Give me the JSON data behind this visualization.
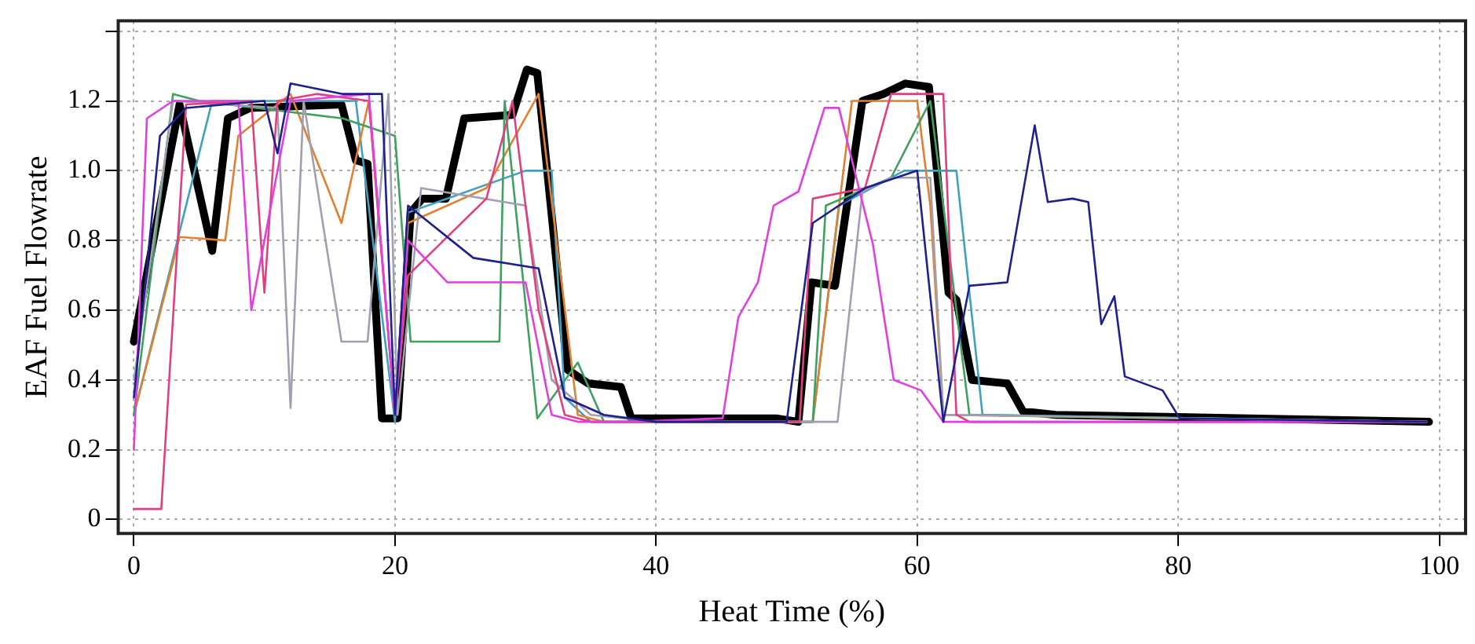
{
  "chart_data": {
    "type": "line",
    "xlabel": "Heat Time (%)",
    "ylabel": "EAF Fuel Flowrate",
    "xlim": [
      -1.2,
      102
    ],
    "ylim": [
      -0.04,
      1.43
    ],
    "xticks": [
      0,
      20,
      40,
      60,
      80,
      100
    ],
    "yticks": [
      0,
      0.2,
      0.4,
      0.6,
      0.8,
      {
        "value": 1,
        "label": "1.0"
      },
      1.2,
      {
        "value": 1.4,
        "label": null
      }
    ],
    "grid": true,
    "legend": false,
    "marker": "none",
    "line_style": "solid",
    "series": [
      {
        "color": "#1f1f8f",
        "x": [
          0,
          2,
          4,
          10,
          11,
          12,
          16,
          19,
          20,
          21,
          26,
          31,
          33,
          36,
          40,
          50,
          52,
          56,
          60,
          62,
          64,
          66.9,
          69,
          70,
          71.9,
          73.1,
          74.1,
          75.1,
          75.9,
          78.8,
          80.1,
          99
        ],
        "values": [
          0.35,
          1.1,
          1.18,
          1.2,
          1.05,
          1.25,
          1.22,
          1.22,
          0.3,
          0.9,
          0.75,
          0.72,
          0.35,
          0.3,
          0.28,
          0.28,
          0.85,
          0.95,
          1.0,
          0.28,
          0.67,
          0.68,
          1.13,
          0.91,
          0.92,
          0.91,
          0.56,
          0.64,
          0.41,
          0.37,
          0.29,
          0.28
        ]
      },
      {
        "color": "#e040e0",
        "x": [
          0,
          1,
          3,
          8,
          9,
          12,
          18,
          20,
          21,
          24,
          30,
          32,
          34,
          38,
          45.1,
          46.3,
          47.8,
          49,
          50.9,
          52.9,
          54,
          56.6,
          58.2,
          60.3,
          62,
          99
        ],
        "values": [
          0.2,
          1.15,
          1.2,
          1.2,
          0.6,
          1.2,
          1.22,
          0.3,
          0.8,
          0.68,
          0.68,
          0.3,
          0.28,
          0.28,
          0.29,
          0.58,
          0.68,
          0.9,
          0.94,
          1.18,
          1.18,
          0.79,
          0.4,
          0.37,
          0.28,
          0.28
        ]
      },
      {
        "color": "#e0407f",
        "x": [
          0,
          2.1,
          4,
          9,
          10,
          11,
          14,
          18,
          20,
          21,
          27,
          29,
          31,
          33,
          35,
          51,
          52,
          56,
          58,
          62,
          63,
          64,
          99
        ],
        "values": [
          0.03,
          0.03,
          1.19,
          1.2,
          0.65,
          1.2,
          1.22,
          1.2,
          0.3,
          0.7,
          0.92,
          1.2,
          0.6,
          0.3,
          0.28,
          0.28,
          0.92,
          0.95,
          1.22,
          1.22,
          0.3,
          0.28,
          0.28
        ]
      },
      {
        "color": "#a0a0b0",
        "x": [
          0,
          3,
          11,
          12,
          13,
          15.9,
          17.9,
          19.5,
          20.2,
          22,
          30,
          32,
          35,
          40,
          53.9,
          55.8,
          58,
          61,
          62,
          99
        ],
        "values": [
          0.4,
          1.2,
          1.18,
          0.32,
          1.2,
          0.51,
          0.51,
          1.22,
          0.3,
          0.95,
          0.9,
          0.4,
          0.3,
          0.28,
          0.28,
          0.94,
          0.98,
          0.98,
          0.3,
          0.28
        ]
      },
      {
        "color": "#3fa060",
        "x": [
          0,
          3,
          5,
          16,
          20,
          21.2,
          28,
          28.4,
          30.9,
          34,
          36,
          52,
          53,
          58,
          61,
          64,
          99
        ],
        "values": [
          0.3,
          1.22,
          1.2,
          1.15,
          1.1,
          0.51,
          0.51,
          1.2,
          0.29,
          0.45,
          0.28,
          0.28,
          0.9,
          0.98,
          1.2,
          0.3,
          0.28
        ]
      },
      {
        "color": "#e08030",
        "x": [
          0,
          3.5,
          7,
          8,
          12,
          15.9,
          18,
          20,
          21,
          27,
          31,
          34,
          36,
          52,
          55,
          60,
          61,
          62,
          99
        ],
        "values": [
          0.3,
          0.81,
          0.8,
          1.1,
          1.22,
          0.85,
          1.2,
          0.3,
          0.85,
          0.95,
          1.22,
          0.3,
          0.28,
          0.28,
          1.2,
          1.2,
          0.9,
          0.3,
          0.28
        ]
      },
      {
        "color": "#40a0c0",
        "x": [
          0,
          2,
          6,
          17,
          20,
          21,
          30,
          32,
          33,
          35,
          52,
          54,
          59,
          63,
          65,
          99
        ],
        "values": [
          0.3,
          0.6,
          1.2,
          1.2,
          0.28,
          0.88,
          1.0,
          1.0,
          0.35,
          0.28,
          0.28,
          0.9,
          1.0,
          1.0,
          0.3,
          0.28
        ]
      },
      {
        "color": "#000000",
        "x": [
          0,
          3.5,
          6,
          7.2,
          8.9,
          15.9,
          17,
          17.9,
          19,
          20.2,
          21.2,
          22.1,
          23.9,
          25.3,
          29,
          30.1,
          30.9,
          33.2,
          34.8,
          37.3,
          38.1,
          49.2,
          50.9,
          51.9,
          53.7,
          55.8,
          57.4,
          59.1,
          60.9,
          62.4,
          63,
          64.2,
          66.9,
          68.1,
          70.6,
          99.2
        ],
        "values": [
          0.51,
          1.19,
          0.77,
          1.15,
          1.18,
          1.19,
          1.03,
          1.02,
          0.29,
          0.29,
          0.88,
          0.92,
          0.92,
          1.15,
          1.16,
          1.29,
          1.28,
          0.43,
          0.39,
          0.38,
          0.29,
          0.29,
          0.28,
          0.68,
          0.67,
          1.2,
          1.22,
          1.25,
          1.24,
          0.65,
          0.63,
          0.4,
          0.39,
          0.31,
          0.3,
          0.28
        ]
      }
    ]
  }
}
